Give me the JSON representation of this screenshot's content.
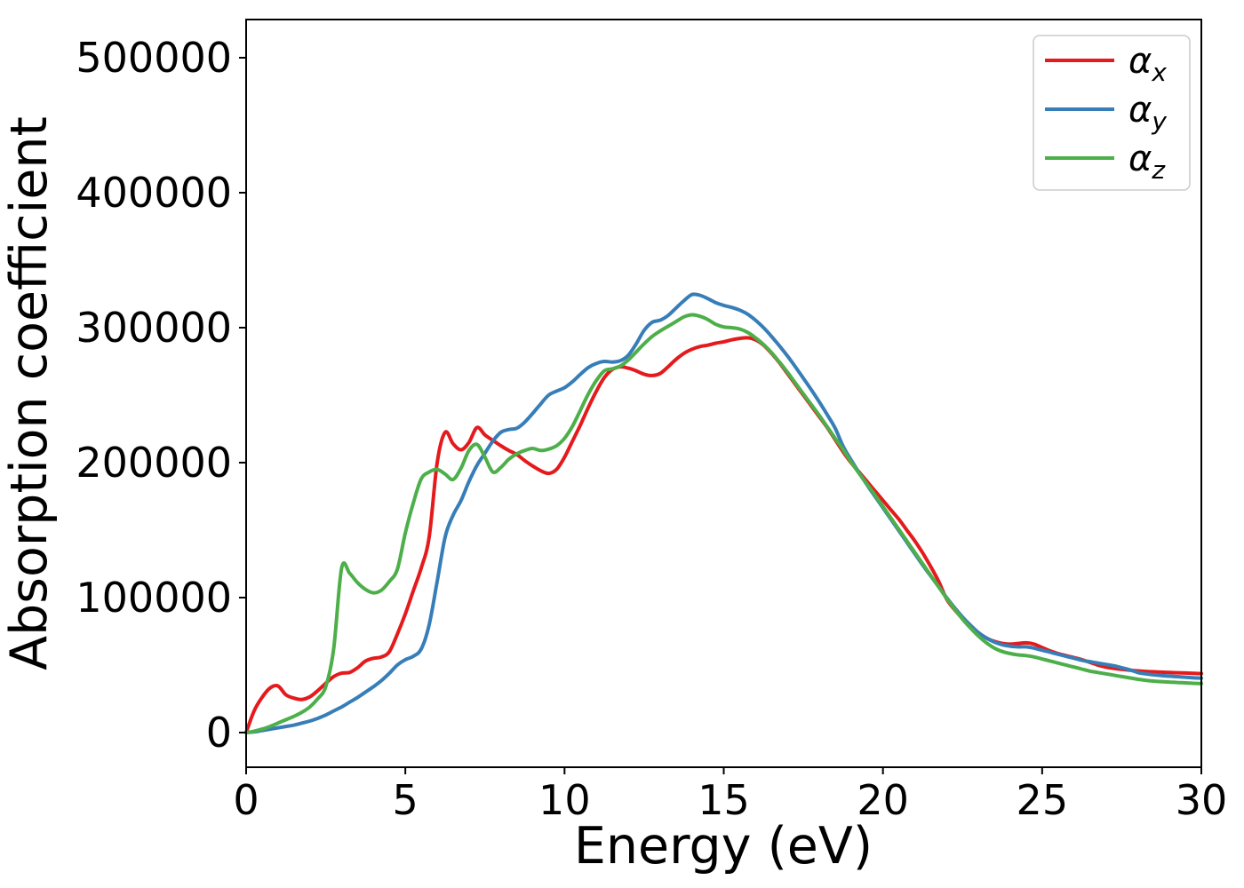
{
  "chart_data": {
    "type": "line",
    "title": "",
    "xlabel": "Energy (eV)",
    "ylabel": "Absorption coefficient",
    "xlim": [
      0,
      30
    ],
    "ylim": [
      -25700,
      528300
    ],
    "x_ticks": [
      0,
      5,
      10,
      15,
      20,
      25,
      30
    ],
    "y_ticks": [
      0,
      100000,
      200000,
      300000,
      400000,
      500000
    ],
    "grid": false,
    "legend_position": "upper right",
    "x_start": 0,
    "x_step": 0.25,
    "n_points": 121,
    "axis_color": "#000000",
    "legend_border_color": "#cccccc",
    "series": [
      {
        "name": "alpha_x",
        "legend_symbol": "α",
        "legend_subscript": "x",
        "color": "#e41a1c",
        "values": [
          0,
          16000,
          26000,
          33000,
          34500,
          28000,
          25500,
          24500,
          26500,
          31000,
          36500,
          41500,
          44000,
          44500,
          48000,
          53000,
          55000,
          56000,
          60000,
          73000,
          88000,
          105000,
          122000,
          145000,
          200000,
          222500,
          214000,
          209500,
          215000,
          226000,
          220500,
          216500,
          212500,
          209000,
          206000,
          201500,
          197500,
          194000,
          192000,
          195000,
          204000,
          216000,
          228000,
          241000,
          253000,
          263000,
          269000,
          271000,
          270000,
          268000,
          265500,
          264500,
          266000,
          271000,
          276500,
          281000,
          284000,
          286000,
          287000,
          288500,
          289500,
          291000,
          292000,
          292500,
          291000,
          287000,
          281000,
          274000,
          266000,
          258000,
          250000,
          242000,
          234000,
          226000,
          217000,
          208000,
          200000,
          193000,
          186000,
          179000,
          172000,
          165000,
          158000,
          150000,
          142000,
          133000,
          123000,
          112000,
          99000,
          91000,
          84500,
          79000,
          74000,
          70000,
          67500,
          66000,
          65500,
          66000,
          66500,
          65500,
          63000,
          60500,
          58500,
          57000,
          55500,
          54000,
          52000,
          50000,
          48500,
          47500,
          46800,
          46200,
          45700,
          45300,
          45000,
          44800,
          44500,
          44300,
          44100,
          43900,
          43700
        ]
      },
      {
        "name": "alpha_y",
        "legend_symbol": "α",
        "legend_subscript": "y",
        "color": "#377eb8",
        "values": [
          0,
          500,
          1500,
          2500,
          3500,
          4500,
          5500,
          7000,
          8500,
          10500,
          13000,
          16000,
          19000,
          22500,
          26000,
          30000,
          34000,
          38500,
          44000,
          50000,
          54000,
          56500,
          62000,
          80000,
          112000,
          145000,
          161000,
          172000,
          186000,
          198000,
          207000,
          216000,
          222500,
          224500,
          225500,
          230000,
          236500,
          243500,
          250000,
          253000,
          255500,
          260000,
          265500,
          270500,
          273500,
          275000,
          274500,
          275500,
          279500,
          288000,
          298000,
          304000,
          305500,
          309000,
          314500,
          320000,
          324500,
          324000,
          321500,
          318500,
          316500,
          315000,
          313000,
          310000,
          305500,
          300000,
          293500,
          286500,
          279000,
          271000,
          262500,
          254000,
          245000,
          235500,
          225500,
          212000,
          202000,
          192500,
          183500,
          175000,
          166500,
          158000,
          149500,
          141000,
          132500,
          124000,
          116000,
          108000,
          100000,
          92500,
          85500,
          79500,
          74000,
          70000,
          67000,
          65000,
          64000,
          63500,
          63500,
          62500,
          61000,
          59500,
          58000,
          56500,
          55000,
          53500,
          52500,
          51500,
          50500,
          49500,
          48000,
          46500,
          44500,
          43500,
          42800,
          42200,
          41800,
          41400,
          41000,
          40600,
          40300
        ]
      },
      {
        "name": "alpha_z",
        "legend_symbol": "α",
        "legend_subscript": "z",
        "color": "#4daf4a",
        "values": [
          0,
          1000,
          2500,
          4500,
          7000,
          9500,
          12000,
          15000,
          19000,
          25000,
          34000,
          62000,
          122000,
          118000,
          111000,
          106000,
          103500,
          105500,
          112000,
          121000,
          148000,
          170000,
          188000,
          193000,
          195000,
          191500,
          187500,
          196000,
          209000,
          213500,
          204000,
          193000,
          196500,
          202500,
          206500,
          209000,
          210500,
          209000,
          210000,
          212500,
          218000,
          227000,
          239000,
          251000,
          261000,
          268000,
          269500,
          271500,
          276000,
          282000,
          288000,
          293500,
          297500,
          301000,
          304500,
          308000,
          309500,
          308500,
          306000,
          302500,
          300500,
          300000,
          299000,
          296500,
          292500,
          287500,
          281500,
          274500,
          267000,
          259000,
          251000,
          243000,
          235000,
          226500,
          218000,
          209500,
          200500,
          192000,
          184000,
          176000,
          167500,
          159000,
          150500,
          142000,
          133500,
          125000,
          116500,
          108000,
          99500,
          91500,
          84000,
          77500,
          71500,
          66500,
          62500,
          60000,
          58500,
          57500,
          57000,
          56000,
          54500,
          53000,
          51500,
          50000,
          48500,
          47000,
          45500,
          44500,
          43500,
          42500,
          41500,
          40500,
          39500,
          38700,
          38100,
          37700,
          37400,
          37100,
          36800,
          36500,
          36300
        ]
      }
    ]
  }
}
